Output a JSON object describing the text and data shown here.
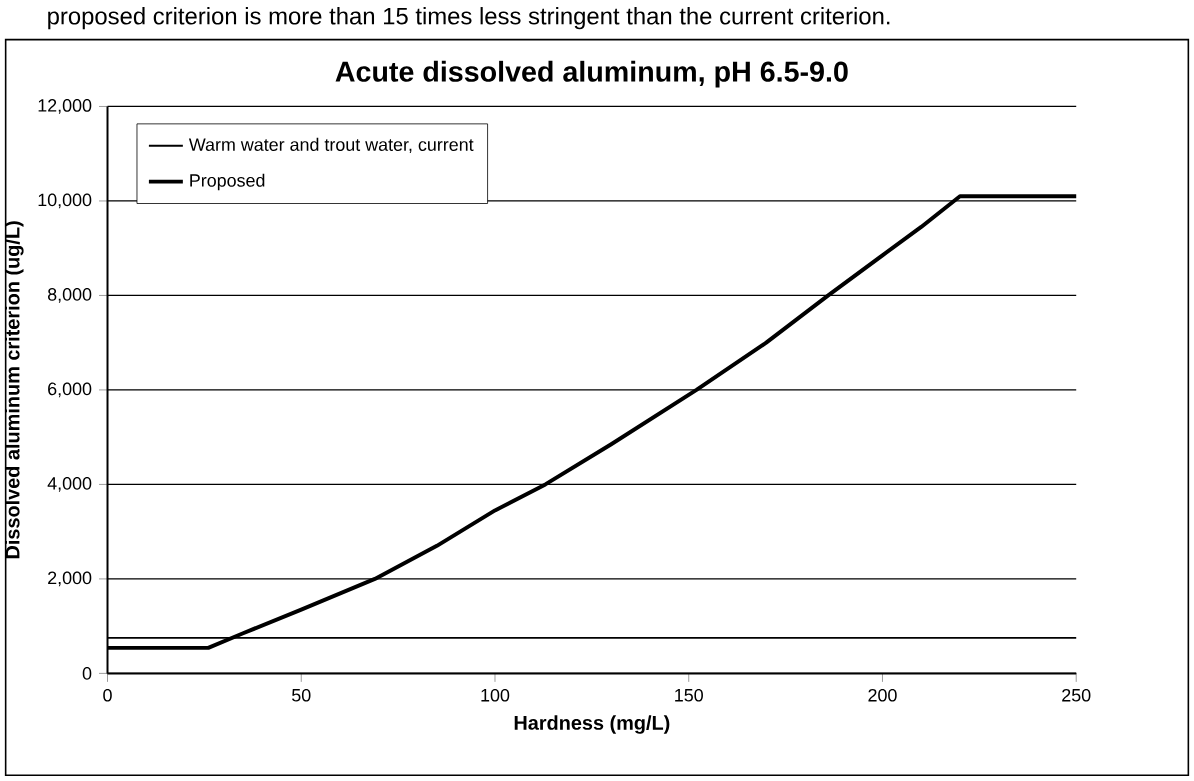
{
  "chart_data": {
    "type": "line",
    "title": "Acute dissolved aluminum, pH 6.5-9.0",
    "xlabel": "Hardness (mg/L)",
    "ylabel": "Dissolved aluminum criterion (ug/L)",
    "annotations": [
      "proposed criterion is more than 15 times less stringent than the current criterion."
    ],
    "series": [
      {
        "name": "Warm water and trout water, current",
        "color": "#000000",
        "x": [
          0,
          250
        ],
        "values": [
          750,
          750
        ]
      },
      {
        "name": "Proposed",
        "color": "#000000",
        "x": [
          0,
          26,
          35,
          50,
          69,
          85,
          100,
          113,
          130,
          152,
          170,
          186,
          200,
          210,
          220,
          250
        ],
        "values": [
          540,
          540,
          850,
          1350,
          2000,
          2700,
          3450,
          4000,
          4850,
          6000,
          7000,
          8000,
          8850,
          9450,
          10100,
          10100
        ]
      }
    ],
    "xlim": [
      0,
      250
    ],
    "ylim": [
      0,
      12000
    ],
    "xticks": [
      0,
      50,
      100,
      150,
      200,
      250
    ],
    "yticks": [
      0,
      {
        "value": 2000,
        "label": "2,000"
      },
      {
        "value": 4000,
        "label": "4,000"
      },
      {
        "value": 6000,
        "label": "6,000"
      },
      {
        "value": 8000,
        "label": "8,000"
      },
      {
        "value": 10000,
        "label": "10,000"
      },
      {
        "value": 12000,
        "label": "12,000"
      }
    ],
    "grid": "y",
    "legend": "top left",
    "marker": "none",
    "line_style": "solid"
  }
}
